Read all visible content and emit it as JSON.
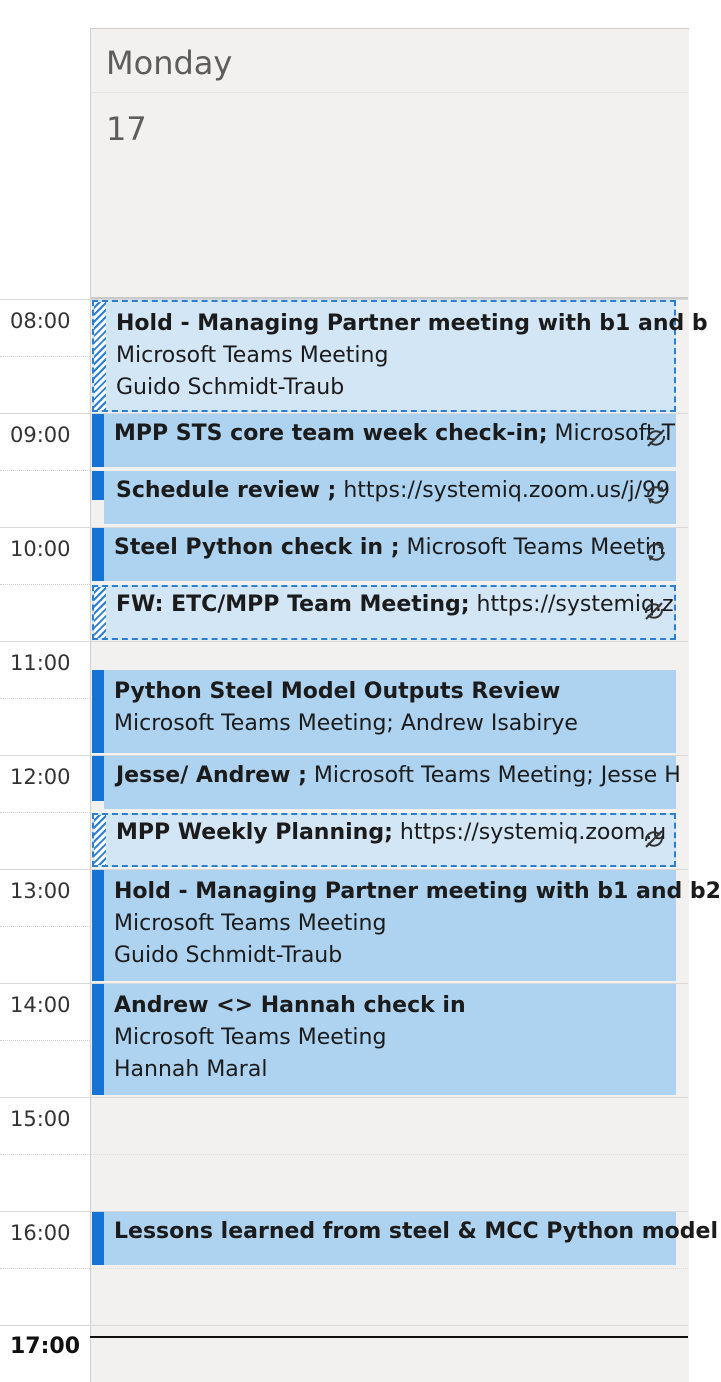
{
  "day": {
    "name": "Monday",
    "date": "17"
  },
  "hours": [
    "08:00",
    "09:00",
    "10:00",
    "11:00",
    "12:00",
    "13:00",
    "14:00",
    "15:00",
    "16:00",
    "17:00"
  ],
  "current_hour": "17:00",
  "events": [
    {
      "title": "Hold - Managing Partner meeting with b1 and b",
      "lines": [
        "Microsoft Teams Meeting",
        "Guido Schmidt-Traub"
      ],
      "status": "tentative",
      "icon": ""
    },
    {
      "title": "MPP STS core team week check-in;",
      "inline": "Microsoft T",
      "status": "busy",
      "icon": "recurring-exception-icon"
    },
    {
      "title": "Schedule review ;",
      "inline": "https://systemiq.zoom.us/j/99",
      "status": "busy-partial",
      "icon": "recurring-icon"
    },
    {
      "title": "Steel Python check in ;",
      "inline": "Microsoft Teams Meetin",
      "status": "busy",
      "icon": "recurring-icon"
    },
    {
      "title": "FW: ETC/MPP Team Meeting;",
      "inline": "https://systemiq.z",
      "status": "tentative",
      "icon": "recurring-exception-icon"
    },
    {
      "title": "Python Steel Model Outputs Review",
      "lines": [
        "Microsoft Teams Meeting; Andrew Isabirye"
      ],
      "status": "busy",
      "icon": ""
    },
    {
      "title": "Jesse/ Andrew ;",
      "inline": "Microsoft Teams Meeting; Jesse H",
      "status": "busy-partial",
      "icon": ""
    },
    {
      "title": "MPP Weekly Planning;",
      "inline": "https://systemiq.zoom.u",
      "status": "tentative",
      "icon": "recurring-exception-icon"
    },
    {
      "title": "Hold - Managing Partner meeting with b1 and b2",
      "lines": [
        "Microsoft Teams Meeting",
        "Guido Schmidt-Traub"
      ],
      "status": "busy",
      "icon": ""
    },
    {
      "title": "Andrew <> Hannah check in",
      "lines": [
        "Microsoft Teams Meeting",
        "Hannah Maral"
      ],
      "status": "busy",
      "icon": ""
    },
    {
      "title": "Lessons learned from steel & MCC Python model",
      "status": "busy",
      "icon": ""
    }
  ],
  "colors": {
    "accent": "#1473d4",
    "event_bg": "#aed3f0",
    "tentative_bg": "#d3e6f6"
  }
}
